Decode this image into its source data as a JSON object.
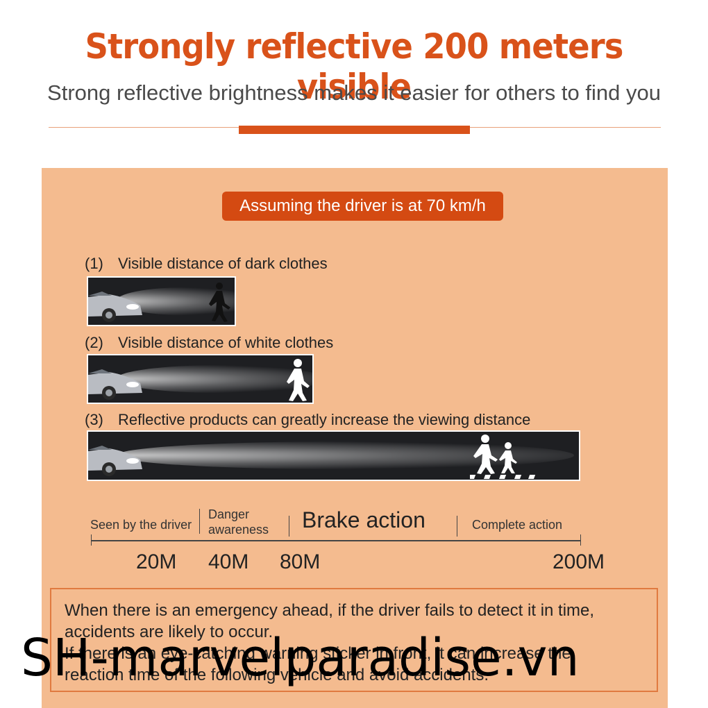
{
  "header": {
    "title": "Strongly reflective 200 meters visible",
    "subtitle": "Strong reflective brightness makes it easier for others to find you"
  },
  "badge": "Assuming the driver is at 70 km/h",
  "items": [
    {
      "num": "(1)",
      "label": "Visible distance of dark clothes"
    },
    {
      "num": "(2)",
      "label": "Visible distance of white clothes"
    },
    {
      "num": "(3)",
      "label": "Reflective products can greatly increase the viewing distance"
    }
  ],
  "scale": {
    "stages": {
      "seen": "Seen by the driver",
      "danger_1": "Danger",
      "danger_2": "awareness",
      "brake": "Brake action",
      "complete": "Complete action"
    },
    "distances": [
      "20M",
      "40M",
      "80M",
      "200M"
    ]
  },
  "note": {
    "line1": "When there is an emergency ahead, if the driver fails to detect it in time,",
    "line2": "accidents are likely to occur.",
    "line3": "If there is an eye-catching warning sticker in front, it can increase the",
    "line4": "reaction time of the following vehicle and avoid accidents."
  },
  "watermark": "SH-marvelparadise.vn",
  "colors": {
    "accent": "#d9521a",
    "panel": "#f4bb8f",
    "badge": "#d44a12"
  }
}
